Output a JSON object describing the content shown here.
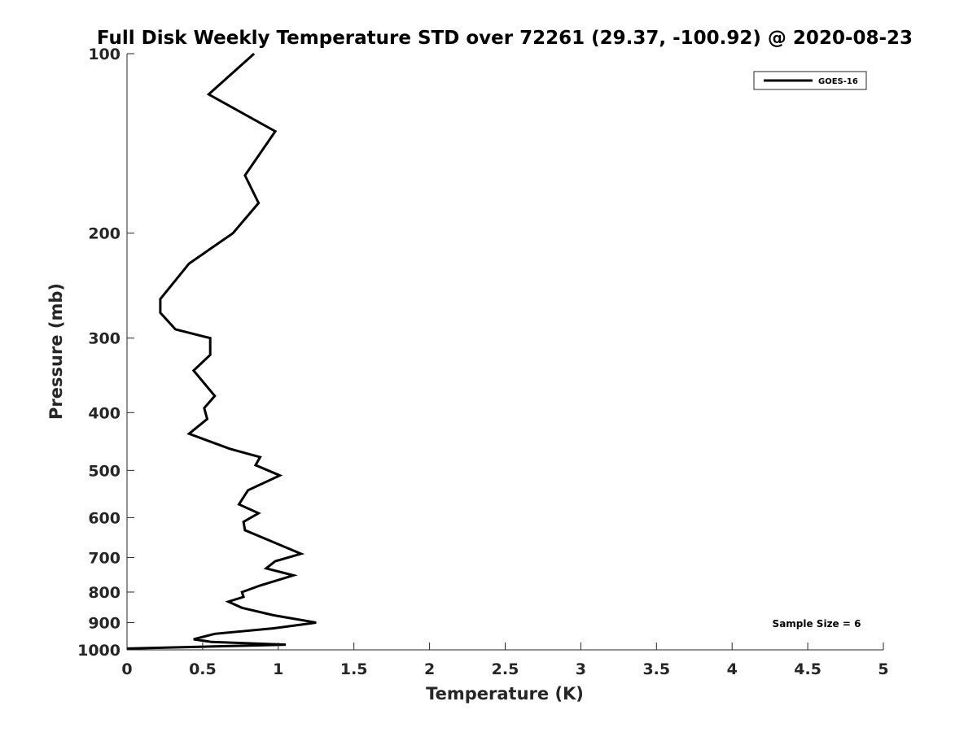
{
  "chart_data": {
    "type": "line",
    "title": "Full Disk Weekly Temperature STD over 72261 (29.37, -100.92) @ 2020-08-23",
    "xlabel": "Temperature (K)",
    "ylabel": "Pressure (mb)",
    "xlim": [
      0,
      5
    ],
    "ylim": [
      100,
      1000
    ],
    "y_scale": "log",
    "y_reversed": true,
    "x_ticks": [
      "0",
      "0.5",
      "1",
      "1.5",
      "2",
      "2.5",
      "3",
      "3.5",
      "4",
      "4.5",
      "5"
    ],
    "y_ticks": [
      "100",
      "200",
      "300",
      "400",
      "500",
      "600",
      "700",
      "800",
      "900",
      "1000"
    ],
    "grid": false,
    "legend_position": "top-right",
    "line_color": "#000000",
    "series": [
      {
        "name": "GOES-16",
        "x": [
          0.84,
          0.54,
          0.98,
          0.78,
          0.87,
          0.7,
          0.41,
          0.22,
          0.22,
          0.32,
          0.55,
          0.55,
          0.44,
          0.58,
          0.51,
          0.53,
          0.41,
          0.68,
          0.88,
          0.85,
          1.01,
          0.8,
          0.74,
          0.87,
          0.77,
          0.78,
          0.97,
          1.15,
          0.98,
          0.92,
          1.1,
          0.88,
          0.76,
          0.77,
          0.67,
          0.76,
          0.97,
          1.25,
          0.97,
          0.58,
          0.44,
          0.56,
          1.05,
          0.0
        ],
        "y": [
          100,
          117,
          135,
          160,
          178,
          200,
          225,
          258,
          272,
          290,
          300,
          320,
          340,
          375,
          393,
          410,
          434,
          460,
          475,
          490,
          510,
          540,
          570,
          590,
          610,
          630,
          660,
          690,
          710,
          730,
          750,
          780,
          800,
          815,
          830,
          850,
          875,
          900,
          920,
          940,
          960,
          970,
          980,
          995
        ]
      }
    ],
    "annotation": "Sample Size = 6"
  }
}
